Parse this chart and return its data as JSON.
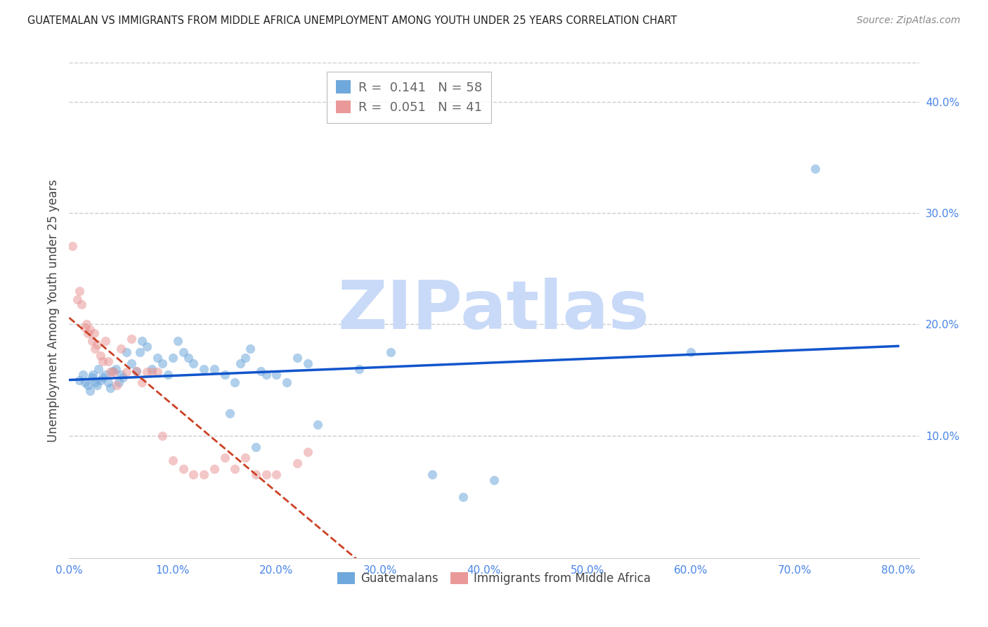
{
  "title": "GUATEMALAN VS IMMIGRANTS FROM MIDDLE AFRICA UNEMPLOYMENT AMONG YOUTH UNDER 25 YEARS CORRELATION CHART",
  "source": "Source: ZipAtlas.com",
  "ylabel": "Unemployment Among Youth under 25 years",
  "xlim": [
    0.0,
    0.82
  ],
  "ylim": [
    -0.01,
    0.435
  ],
  "xticks": [
    0.0,
    0.1,
    0.2,
    0.3,
    0.4,
    0.5,
    0.6,
    0.7,
    0.8
  ],
  "xticklabels": [
    "0.0%",
    "10.0%",
    "20.0%",
    "30.0%",
    "40.0%",
    "50.0%",
    "60.0%",
    "70.0%",
    "80.0%"
  ],
  "yticks_right": [
    0.1,
    0.2,
    0.3,
    0.4
  ],
  "yticklabels_right": [
    "10.0%",
    "20.0%",
    "30.0%",
    "40.0%"
  ],
  "blue_R": 0.141,
  "blue_N": 58,
  "pink_R": 0.051,
  "pink_N": 41,
  "blue_color": "#6fa8dc",
  "pink_color": "#ea9999",
  "blue_line_color": "#1155cc",
  "pink_line_color": "#cc4125",
  "tick_color": "#4a86e8",
  "scatter_alpha": 0.55,
  "marker_size": 90,
  "blue_x": [
    0.01,
    0.013,
    0.015,
    0.018,
    0.02,
    0.022,
    0.023,
    0.025,
    0.027,
    0.028,
    0.03,
    0.032,
    0.035,
    0.038,
    0.04,
    0.042,
    0.045,
    0.048,
    0.05,
    0.052,
    0.055,
    0.06,
    0.065,
    0.068,
    0.07,
    0.075,
    0.08,
    0.085,
    0.09,
    0.095,
    0.1,
    0.105,
    0.11,
    0.115,
    0.12,
    0.13,
    0.14,
    0.15,
    0.155,
    0.16,
    0.165,
    0.17,
    0.175,
    0.18,
    0.185,
    0.19,
    0.2,
    0.21,
    0.22,
    0.23,
    0.24,
    0.28,
    0.31,
    0.35,
    0.38,
    0.41,
    0.6,
    0.72
  ],
  "blue_y": [
    0.15,
    0.155,
    0.148,
    0.145,
    0.14,
    0.152,
    0.155,
    0.148,
    0.145,
    0.16,
    0.15,
    0.152,
    0.155,
    0.148,
    0.143,
    0.158,
    0.16,
    0.148,
    0.155,
    0.152,
    0.175,
    0.165,
    0.158,
    0.175,
    0.185,
    0.18,
    0.16,
    0.17,
    0.165,
    0.155,
    0.17,
    0.185,
    0.175,
    0.17,
    0.165,
    0.16,
    0.16,
    0.155,
    0.12,
    0.148,
    0.165,
    0.17,
    0.178,
    0.09,
    0.158,
    0.155,
    0.155,
    0.148,
    0.17,
    0.165,
    0.11,
    0.16,
    0.175,
    0.065,
    0.045,
    0.06,
    0.175,
    0.34
  ],
  "pink_x": [
    0.003,
    0.008,
    0.01,
    0.012,
    0.015,
    0.017,
    0.018,
    0.02,
    0.022,
    0.024,
    0.025,
    0.027,
    0.03,
    0.032,
    0.035,
    0.038,
    0.04,
    0.043,
    0.046,
    0.05,
    0.055,
    0.06,
    0.065,
    0.07,
    0.075,
    0.08,
    0.085,
    0.09,
    0.1,
    0.11,
    0.12,
    0.13,
    0.14,
    0.15,
    0.16,
    0.17,
    0.18,
    0.19,
    0.2,
    0.22,
    0.23
  ],
  "pink_y": [
    0.27,
    0.222,
    0.23,
    0.218,
    0.197,
    0.2,
    0.192,
    0.195,
    0.185,
    0.192,
    0.178,
    0.182,
    0.172,
    0.167,
    0.185,
    0.167,
    0.157,
    0.157,
    0.145,
    0.178,
    0.157,
    0.187,
    0.158,
    0.148,
    0.157,
    0.157,
    0.157,
    0.1,
    0.078,
    0.07,
    0.065,
    0.065,
    0.07,
    0.08,
    0.07,
    0.08,
    0.065,
    0.065,
    0.065,
    0.075,
    0.085
  ],
  "watermark_text": "ZIPatlas",
  "watermark_color": "#c9daf8",
  "bg_color": "#ffffff",
  "grid_color": "#cccccc"
}
